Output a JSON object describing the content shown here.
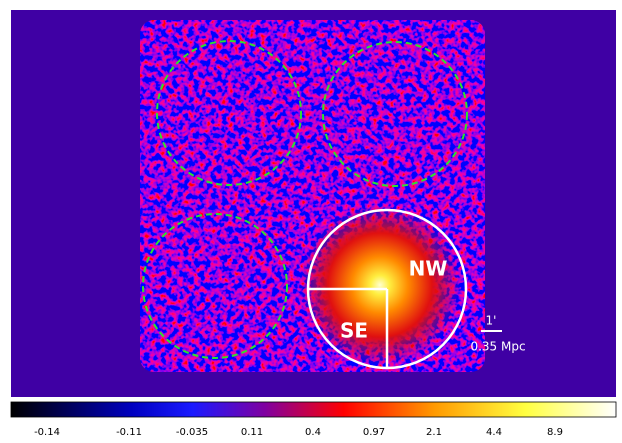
{
  "image": {
    "labels": {
      "nw": "NW",
      "se": "SE"
    },
    "scale_bar": {
      "angle": "1'",
      "distance": "0.35 Mpc"
    }
  },
  "colorbar": {
    "ticks": [
      "-0.14",
      "-0.11",
      "-0.035",
      "0.11",
      "0.4",
      "0.97",
      "2.1",
      "4.4",
      "8.9"
    ]
  }
}
